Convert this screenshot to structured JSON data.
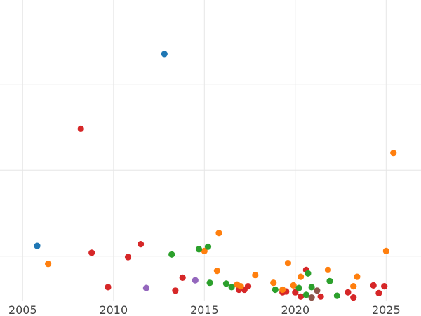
{
  "chart_data": {
    "type": "scatter",
    "title": "",
    "xlabel": "",
    "ylabel": "",
    "grid": true,
    "legend": "none",
    "xlim": [
      2005,
      2026.5
    ],
    "ylim": [
      0,
      330
    ],
    "x_ticks": [
      2005,
      2010,
      2015,
      2020,
      2025
    ],
    "x_tick_labels": [
      "2005",
      "2010",
      "2015",
      "2020",
      "2025"
    ],
    "y_ticks": [
      50,
      150,
      250
    ],
    "colors": {
      "blue": "#1f77b4",
      "orange": "#ff7f0e",
      "green": "#2ca02c",
      "red": "#d62728",
      "purple": "#9467bd",
      "brown": "#8c564b"
    },
    "series": [
      {
        "color_key": "blue",
        "points": [
          [
            2005.8,
            62
          ],
          [
            2012.8,
            285
          ]
        ]
      },
      {
        "color_key": "red",
        "points": [
          [
            2008.2,
            198
          ],
          [
            2008.8,
            54
          ],
          [
            2009.7,
            14
          ],
          [
            2010.8,
            49
          ],
          [
            2011.5,
            64
          ],
          [
            2013.4,
            10
          ],
          [
            2013.8,
            25
          ],
          [
            2016.9,
            11
          ],
          [
            2017.2,
            11
          ],
          [
            2017.4,
            15
          ],
          [
            2019.3,
            8
          ],
          [
            2019.5,
            9
          ],
          [
            2020.0,
            8
          ],
          [
            2020.3,
            3
          ],
          [
            2020.6,
            34
          ],
          [
            2021.4,
            3
          ],
          [
            2022.9,
            8
          ],
          [
            2023.2,
            2
          ],
          [
            2024.3,
            16
          ],
          [
            2024.6,
            7
          ],
          [
            2024.9,
            15
          ]
        ]
      },
      {
        "color_key": "orange",
        "points": [
          [
            2006.4,
            41
          ],
          [
            2015.0,
            56
          ],
          [
            2015.7,
            33
          ],
          [
            2015.8,
            77
          ],
          [
            2016.8,
            17
          ],
          [
            2017.0,
            15
          ],
          [
            2017.8,
            28
          ],
          [
            2018.8,
            19
          ],
          [
            2019.3,
            11
          ],
          [
            2019.6,
            42
          ],
          [
            2019.9,
            16
          ],
          [
            2020.3,
            26
          ],
          [
            2021.8,
            34
          ],
          [
            2023.2,
            15
          ],
          [
            2023.4,
            26
          ],
          [
            2025.0,
            56
          ],
          [
            2025.4,
            170
          ]
        ]
      },
      {
        "color_key": "green",
        "points": [
          [
            2013.2,
            52
          ],
          [
            2014.7,
            58
          ],
          [
            2015.2,
            61
          ],
          [
            2015.3,
            19
          ],
          [
            2016.2,
            18
          ],
          [
            2016.5,
            14
          ],
          [
            2018.9,
            11
          ],
          [
            2020.2,
            13
          ],
          [
            2020.6,
            5
          ],
          [
            2020.7,
            30
          ],
          [
            2020.9,
            14
          ],
          [
            2021.9,
            21
          ],
          [
            2022.3,
            4
          ]
        ]
      },
      {
        "color_key": "purple",
        "points": [
          [
            2011.8,
            13
          ],
          [
            2014.5,
            22
          ]
        ]
      },
      {
        "color_key": "brown",
        "points": [
          [
            2020.9,
            2
          ],
          [
            2021.2,
            10
          ]
        ]
      }
    ]
  }
}
